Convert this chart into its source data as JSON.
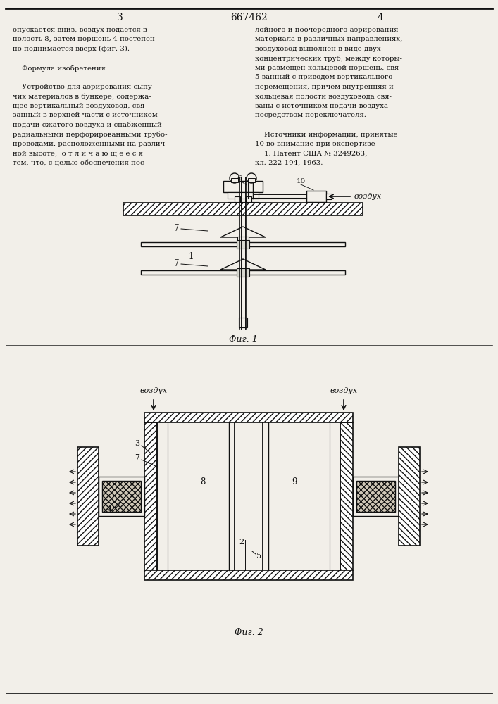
{
  "bg_color": "#f2efe9",
  "title_text": "667462",
  "page_left": "3",
  "page_right": "4",
  "text_left_lines": [
    "опускается вниз, воздух подается в",
    "полость 8, затем поршень 4 постепен-",
    "но поднимается вверх (фиг. 3).",
    "",
    "    Формула изобретения",
    "",
    "    Устройство для аэрирования сыпу-",
    "чих материалов в бункере, содержа-",
    "щее вертикальный воздуховод, свя-",
    "занный в верхней части с источником",
    "подачи сжатого воздуха и снабженный",
    "радиальными перфорированными трубо-",
    "проводами, расположенными на различ-",
    "ной высоте,  о т л и ч а ю щ е е с я",
    "тем, что, с целью обеспечения пос-"
  ],
  "text_right_lines": [
    "лойного и поочередного аэрирования",
    "материала в различных направлениях,",
    "воздуховод выполнен в виде двух",
    "концентрических труб, между которы-",
    "ми размещен кольцевой поршень, свя-",
    "5 занный с приводом вертикального",
    "перемещения, причем внутренняя и",
    "кольцевая полости воздуховода свя-",
    "заны с источником подачи воздуха",
    "посредством переключателя.",
    "",
    "    Источники информации, принятые",
    "10 во внимание при экспертизе",
    "    1. Патент США № 3249263,",
    "кл. 222-194, 1963."
  ],
  "fig1_label": "Фиг. 1",
  "fig2_label": "Фиг. 2",
  "air_label": "воздух"
}
